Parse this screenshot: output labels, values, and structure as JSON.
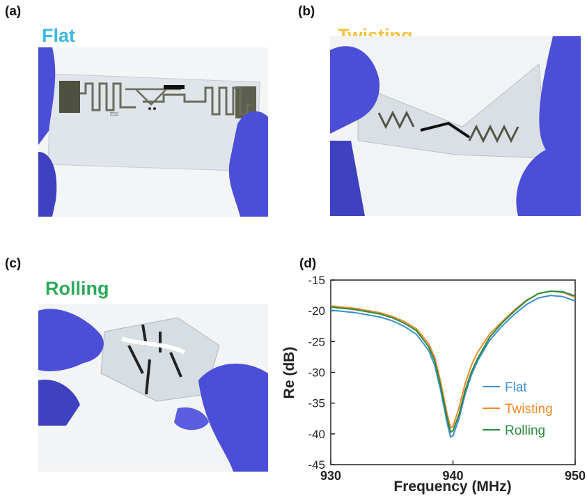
{
  "panels": {
    "a": {
      "letter": "(a)",
      "label": "Flat",
      "label_color": "#3fb8e6",
      "photo_text": "E52"
    },
    "b": {
      "letter": "(b)",
      "label": "Twisting",
      "label_color": "#f5c242"
    },
    "c": {
      "letter": "(c)",
      "label": "Rolling",
      "label_color": "#2daa5a"
    },
    "d": {
      "letter": "(d)"
    }
  },
  "icons": {
    "gloves": "glove-icon",
    "antenna": "rfid-antenna-icon"
  },
  "colors": {
    "glove": "#4b4ed6",
    "film": "#e6ebef",
    "antenna_trace": "#8a8a7a"
  },
  "chart_data": {
    "type": "line",
    "xlabel": "Frequency (MHz)",
    "ylabel": "Re (dB)",
    "xlim": [
      930,
      950
    ],
    "ylim": [
      -45,
      -15
    ],
    "xticks": [
      930,
      940,
      950
    ],
    "yticks": [
      -15,
      -20,
      -25,
      -30,
      -35,
      -40,
      -45
    ],
    "grid": false,
    "legend_position": "lower-right",
    "series": [
      {
        "name": "Flat",
        "color": "#3a8fd0",
        "x": [
          930,
          932,
          934,
          935,
          936,
          937,
          938,
          938.5,
          939,
          939.5,
          939.8,
          940,
          940.5,
          941,
          941.5,
          942,
          943,
          944,
          945,
          946,
          947,
          948,
          949,
          950
        ],
        "y": [
          -19.9,
          -20.3,
          -21.0,
          -21.6,
          -22.5,
          -23.8,
          -26.4,
          -28.8,
          -33.0,
          -38.0,
          -40.5,
          -40.3,
          -37.5,
          -33.5,
          -30.5,
          -28.2,
          -24.8,
          -22.5,
          -20.6,
          -19.0,
          -17.9,
          -17.5,
          -17.7,
          -18.4
        ]
      },
      {
        "name": "Twisting",
        "color": "#f08a2a",
        "x": [
          930,
          932,
          934,
          935,
          936,
          937,
          938,
          938.5,
          939,
          939.5,
          939.8,
          940,
          940.5,
          941,
          941.5,
          942,
          943,
          944,
          945,
          946,
          947,
          948,
          949,
          950
        ],
        "y": [
          -19.2,
          -19.6,
          -20.3,
          -20.9,
          -21.7,
          -22.9,
          -25.3,
          -27.5,
          -31.6,
          -36.5,
          -39.0,
          -38.8,
          -35.7,
          -31.8,
          -28.9,
          -26.8,
          -23.8,
          -21.8,
          -19.9,
          -18.3,
          -17.2,
          -16.8,
          -17.0,
          -17.8
        ]
      },
      {
        "name": "Rolling",
        "color": "#2a8a3a",
        "x": [
          930,
          932,
          934,
          935,
          936,
          937,
          938,
          938.5,
          939,
          939.5,
          939.8,
          940,
          940.5,
          941,
          941.5,
          942,
          943,
          944,
          945,
          946,
          947,
          948,
          949,
          950
        ],
        "y": [
          -19.4,
          -19.8,
          -20.5,
          -21.1,
          -22.0,
          -23.2,
          -25.8,
          -28.1,
          -32.3,
          -37.2,
          -39.7,
          -39.5,
          -36.8,
          -32.9,
          -30.0,
          -27.8,
          -24.3,
          -22.0,
          -20.1,
          -18.4,
          -17.2,
          -16.8,
          -16.9,
          -17.6
        ]
      }
    ]
  }
}
